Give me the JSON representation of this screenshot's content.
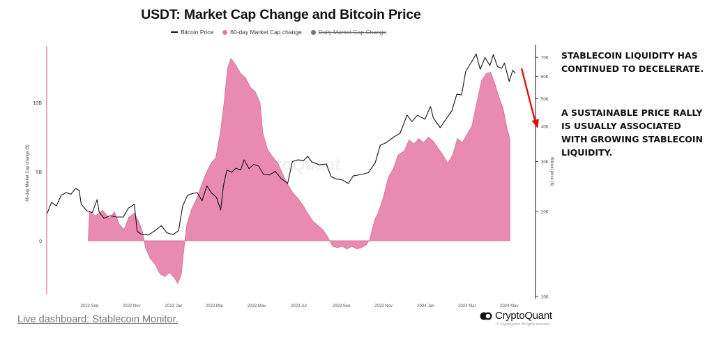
{
  "title": "USDT: Market Cap Change and Bitcoin Price",
  "legend": {
    "bitcoin_price": "Bitcoin Price",
    "market_cap_change": "60-day Market Cap change",
    "daily_market_cap_change": "Daily Market Cap Change"
  },
  "colors": {
    "area_fill": "#e98ab0",
    "area_stroke": "#d56f98",
    "price_line": "#111111",
    "arrow": "#e01010",
    "left_axis_line": "#e0709a",
    "disabled_legend": "#777777"
  },
  "watermark": "CryptoQuant",
  "annotation": {
    "paragraph1": "STABLECOIN LIQUIDITY HAS CONTINUED TO DECELERATE.",
    "paragraph2": "A SUSTAINABLE PRICE RALLY IS USUALLY ASSOCIATED WITH GROWING STABLECOIN LIQUIDITY."
  },
  "footer": {
    "live_dashboard": "Live dashboard: Stablecoin Monitor.",
    "brand": "CryptoQuant",
    "copyright": "© CryptoQuant. All rights reserved."
  },
  "chart_data": {
    "type": "area",
    "title": "USDT: Market Cap Change and Bitcoin Price",
    "ylabel_left": "60-day Market Cap change ($)",
    "ylabel_right": "Bitcoin price ($)",
    "y_left_ticks": [
      "0",
      "5B",
      "10B"
    ],
    "y_left_range": [
      -3.5,
      14
    ],
    "y_right_scale": "log",
    "y_right_ticks": [
      "10K",
      "20K",
      "30K",
      "40K",
      "50K",
      "60K",
      "70K"
    ],
    "y_right_range": [
      10000,
      75000
    ],
    "x_ticks": [
      "2022 Sep",
      "2022 Nov",
      "2023 Jan",
      "2023 Mar",
      "2023 May",
      "2023 Jul",
      "2023 Sep",
      "2023 Nov",
      "2024 Jan",
      "2024 Mar",
      "2024 May"
    ],
    "x_range": [
      "2022-07-01",
      "2024-05-31"
    ],
    "grid": false,
    "legend_position": "top",
    "series": [
      {
        "name": "60-day Market Cap change",
        "unit": "B USD",
        "points": [
          [
            "2022-08-30",
            0
          ],
          [
            "2022-09-01",
            2.1
          ],
          [
            "2022-09-10",
            1.8
          ],
          [
            "2022-09-20",
            2.2
          ],
          [
            "2022-09-30",
            1.6
          ],
          [
            "2022-10-07",
            2.1
          ],
          [
            "2022-10-14",
            1.2
          ],
          [
            "2022-10-21",
            0.8
          ],
          [
            "2022-10-28",
            1.7
          ],
          [
            "2022-11-05",
            2.0
          ],
          [
            "2022-11-12",
            1.3
          ],
          [
            "2022-11-17",
            0.6
          ],
          [
            "2022-11-21",
            -0.5
          ],
          [
            "2022-11-28",
            -1.3
          ],
          [
            "2022-12-05",
            -1.7
          ],
          [
            "2022-12-12",
            -2.4
          ],
          [
            "2022-12-19",
            -2.6
          ],
          [
            "2022-12-26",
            -2.3
          ],
          [
            "2023-01-02",
            -2.7
          ],
          [
            "2023-01-07",
            -3.1
          ],
          [
            "2023-01-12",
            -2.4
          ],
          [
            "2023-01-16",
            -0.5
          ],
          [
            "2023-01-20",
            1.2
          ],
          [
            "2023-01-27",
            2.3
          ],
          [
            "2023-02-03",
            3.0
          ],
          [
            "2023-02-10",
            4.0
          ],
          [
            "2023-02-17",
            4.9
          ],
          [
            "2023-02-24",
            5.6
          ],
          [
            "2023-03-03",
            6.0
          ],
          [
            "2023-03-10",
            8.0
          ],
          [
            "2023-03-15",
            10.0
          ],
          [
            "2023-03-20",
            12.5
          ],
          [
            "2023-03-25",
            13.2
          ],
          [
            "2023-04-01",
            12.7
          ],
          [
            "2023-04-08",
            12.1
          ],
          [
            "2023-04-15",
            11.8
          ],
          [
            "2023-04-22",
            11.1
          ],
          [
            "2023-04-29",
            10.8
          ],
          [
            "2023-05-06",
            10.0
          ],
          [
            "2023-05-10",
            7.8
          ],
          [
            "2023-05-17",
            6.6
          ],
          [
            "2023-05-24",
            6.1
          ],
          [
            "2023-06-01",
            5.6
          ],
          [
            "2023-06-08",
            4.8
          ],
          [
            "2023-06-15",
            4.1
          ],
          [
            "2023-06-22",
            3.5
          ],
          [
            "2023-07-01",
            3.0
          ],
          [
            "2023-07-08",
            2.5
          ],
          [
            "2023-07-15",
            1.9
          ],
          [
            "2023-07-22",
            1.4
          ],
          [
            "2023-07-29",
            1.1
          ],
          [
            "2023-08-05",
            0.8
          ],
          [
            "2023-08-12",
            0.3
          ],
          [
            "2023-08-19",
            -0.4
          ],
          [
            "2023-08-26",
            -0.5
          ],
          [
            "2023-09-02",
            -0.4
          ],
          [
            "2023-09-09",
            -0.6
          ],
          [
            "2023-09-16",
            -0.4
          ],
          [
            "2023-09-23",
            -0.6
          ],
          [
            "2023-09-30",
            -0.5
          ],
          [
            "2023-10-07",
            -0.3
          ],
          [
            "2023-10-12",
            0.1
          ],
          [
            "2023-10-19",
            1.5
          ],
          [
            "2023-10-24",
            2.0
          ],
          [
            "2023-11-01",
            3.2
          ],
          [
            "2023-11-08",
            4.6
          ],
          [
            "2023-11-15",
            5.2
          ],
          [
            "2023-11-22",
            6.2
          ],
          [
            "2023-12-01",
            6.5
          ],
          [
            "2023-12-08",
            7.3
          ],
          [
            "2023-12-15",
            7.0
          ],
          [
            "2023-12-22",
            7.4
          ],
          [
            "2023-12-29",
            7.1
          ],
          [
            "2024-01-05",
            7.5
          ],
          [
            "2024-01-12",
            7.2
          ],
          [
            "2024-01-19",
            6.7
          ],
          [
            "2024-01-26",
            6.2
          ],
          [
            "2024-02-02",
            5.6
          ],
          [
            "2024-02-09",
            6.2
          ],
          [
            "2024-02-16",
            7.4
          ],
          [
            "2024-02-23",
            7.1
          ],
          [
            "2024-03-01",
            7.7
          ],
          [
            "2024-03-08",
            8.3
          ],
          [
            "2024-03-15",
            10.0
          ],
          [
            "2024-03-22",
            11.6
          ],
          [
            "2024-03-29",
            12.1
          ],
          [
            "2024-04-04",
            12.2
          ],
          [
            "2024-04-10",
            11.4
          ],
          [
            "2024-04-16",
            10.4
          ],
          [
            "2024-04-22",
            9.6
          ],
          [
            "2024-04-28",
            8.1
          ],
          [
            "2024-05-02",
            7.4
          ]
        ]
      },
      {
        "name": "Bitcoin Price",
        "unit": "USD",
        "points": [
          [
            "2022-07-01",
            19500
          ],
          [
            "2022-07-08",
            21500
          ],
          [
            "2022-07-15",
            20900
          ],
          [
            "2022-07-22",
            22800
          ],
          [
            "2022-07-29",
            23300
          ],
          [
            "2022-08-05",
            23000
          ],
          [
            "2022-08-12",
            24100
          ],
          [
            "2022-08-17",
            23700
          ],
          [
            "2022-08-20",
            21200
          ],
          [
            "2022-08-28",
            20100
          ],
          [
            "2022-09-05",
            19800
          ],
          [
            "2022-09-12",
            22000
          ],
          [
            "2022-09-15",
            19900
          ],
          [
            "2022-09-22",
            18900
          ],
          [
            "2022-10-01",
            19300
          ],
          [
            "2022-10-10",
            19100
          ],
          [
            "2022-10-20",
            19100
          ],
          [
            "2022-10-27",
            20500
          ],
          [
            "2022-11-05",
            21200
          ],
          [
            "2022-11-09",
            17000
          ],
          [
            "2022-11-15",
            16600
          ],
          [
            "2022-11-25",
            16500
          ],
          [
            "2022-12-05",
            17100
          ],
          [
            "2022-12-14",
            17800
          ],
          [
            "2022-12-22",
            16800
          ],
          [
            "2022-12-31",
            16550
          ],
          [
            "2023-01-08",
            17100
          ],
          [
            "2023-01-14",
            20900
          ],
          [
            "2023-01-21",
            22800
          ],
          [
            "2023-01-28",
            23100
          ],
          [
            "2023-02-04",
            23300
          ],
          [
            "2023-02-11",
            21800
          ],
          [
            "2023-02-18",
            24600
          ],
          [
            "2023-02-25",
            23200
          ],
          [
            "2023-03-04",
            22400
          ],
          [
            "2023-03-10",
            20200
          ],
          [
            "2023-03-14",
            24600
          ],
          [
            "2023-03-19",
            28000
          ],
          [
            "2023-03-26",
            27500
          ],
          [
            "2023-04-01",
            28400
          ],
          [
            "2023-04-08",
            28000
          ],
          [
            "2023-04-13",
            30400
          ],
          [
            "2023-04-20",
            28300
          ],
          [
            "2023-04-27",
            29300
          ],
          [
            "2023-05-04",
            28900
          ],
          [
            "2023-05-11",
            27000
          ],
          [
            "2023-05-20",
            26900
          ],
          [
            "2023-05-28",
            27700
          ],
          [
            "2023-06-05",
            26200
          ],
          [
            "2023-06-15",
            25100
          ],
          [
            "2023-06-22",
            30000
          ],
          [
            "2023-06-30",
            30400
          ],
          [
            "2023-07-08",
            30200
          ],
          [
            "2023-07-14",
            31300
          ],
          [
            "2023-07-20",
            29900
          ],
          [
            "2023-07-31",
            29200
          ],
          [
            "2023-08-10",
            29400
          ],
          [
            "2023-08-17",
            26500
          ],
          [
            "2023-08-25",
            26000
          ],
          [
            "2023-09-01",
            25900
          ],
          [
            "2023-09-11",
            25100
          ],
          [
            "2023-09-18",
            26700
          ],
          [
            "2023-09-30",
            27000
          ],
          [
            "2023-10-10",
            27400
          ],
          [
            "2023-10-20",
            29700
          ],
          [
            "2023-10-27",
            34200
          ],
          [
            "2023-11-05",
            35000
          ],
          [
            "2023-11-15",
            36500
          ],
          [
            "2023-11-25",
            37800
          ],
          [
            "2023-12-05",
            43800
          ],
          [
            "2023-12-12",
            41500
          ],
          [
            "2023-12-20",
            43700
          ],
          [
            "2023-12-31",
            42300
          ],
          [
            "2024-01-08",
            46900
          ],
          [
            "2024-01-12",
            42800
          ],
          [
            "2024-01-22",
            39500
          ],
          [
            "2024-01-31",
            42500
          ],
          [
            "2024-02-08",
            45300
          ],
          [
            "2024-02-15",
            51800
          ],
          [
            "2024-02-22",
            51600
          ],
          [
            "2024-02-28",
            62400
          ],
          [
            "2024-03-05",
            66000
          ],
          [
            "2024-03-10",
            69000
          ],
          [
            "2024-03-14",
            72000
          ],
          [
            "2024-03-20",
            63500
          ],
          [
            "2024-03-27",
            69900
          ],
          [
            "2024-04-03",
            65500
          ],
          [
            "2024-04-08",
            71600
          ],
          [
            "2024-04-14",
            64900
          ],
          [
            "2024-04-20",
            64000
          ],
          [
            "2024-04-24",
            66800
          ],
          [
            "2024-05-01",
            57500
          ],
          [
            "2024-05-06",
            63000
          ],
          [
            "2024-05-10",
            61500
          ]
        ]
      }
    ]
  }
}
